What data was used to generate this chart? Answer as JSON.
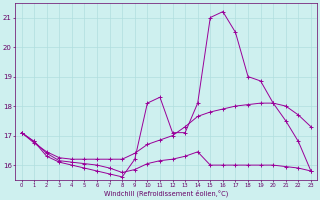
{
  "xlabel": "Windchill (Refroidissement éolien,°C)",
  "x": [
    0,
    1,
    2,
    3,
    4,
    5,
    6,
    7,
    8,
    9,
    10,
    11,
    12,
    13,
    14,
    15,
    16,
    17,
    18,
    19,
    20,
    21,
    22,
    23
  ],
  "line1": [
    17.1,
    16.8,
    16.3,
    16.1,
    16.0,
    15.9,
    15.8,
    15.7,
    15.6,
    16.2,
    18.1,
    18.3,
    17.1,
    17.1,
    18.1,
    21.0,
    21.2,
    20.5,
    19.0,
    18.85,
    18.1,
    17.5,
    16.8,
    15.8
  ],
  "line2": [
    17.1,
    16.8,
    16.4,
    16.15,
    16.1,
    16.05,
    16.0,
    15.9,
    15.75,
    15.85,
    16.05,
    16.15,
    16.2,
    16.3,
    16.45,
    16.0,
    16.0,
    16.0,
    16.0,
    16.0,
    16.0,
    15.95,
    15.9,
    15.8
  ],
  "line3": [
    17.1,
    16.75,
    16.45,
    16.25,
    16.2,
    16.2,
    16.2,
    16.2,
    16.2,
    16.4,
    16.7,
    16.85,
    17.0,
    17.3,
    17.65,
    17.8,
    17.9,
    18.0,
    18.05,
    18.1,
    18.1,
    18.0,
    17.7,
    17.3
  ],
  "line_color": "#990099",
  "bg_color": "#cef0ef",
  "grid_color": "#b0dede",
  "axis_color": "#660066",
  "ylim": [
    15.5,
    21.5
  ],
  "yticks": [
    16,
    17,
    18,
    19,
    20,
    21
  ],
  "xlim": [
    -0.5,
    23.5
  ]
}
